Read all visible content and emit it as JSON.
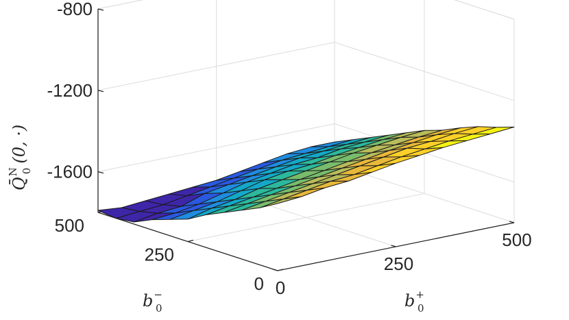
{
  "chart_data": {
    "type": "surface",
    "title": "",
    "xlabel": "b_0^+",
    "ylabel": "b_0^-",
    "zlabel": "Q̄_0^N(0, ·)",
    "xlabel_parts": {
      "base": "b",
      "sub": "0",
      "sup": "+"
    },
    "ylabel_parts": {
      "base": "b",
      "sub": "0",
      "sup": "−"
    },
    "zlabel_parts": {
      "base": "Q̄",
      "sub": "0",
      "sup": "N",
      "args": "(0, ·)"
    },
    "xticks": [
      "0",
      "250",
      "500"
    ],
    "yticks": [
      "0",
      "250",
      "500"
    ],
    "zticks": [
      "-1600",
      "-1200",
      "-800"
    ],
    "xlim": [
      0,
      500
    ],
    "ylim": [
      0,
      500
    ],
    "zlim": [
      -1800,
      -800
    ],
    "grid": true,
    "colormap": [
      "#3e26a8",
      "#2a59e0",
      "#1f8ce0",
      "#14a8c8",
      "#2cb89c",
      "#78bc6c",
      "#b8bc5a",
      "#e8b83a",
      "#fcd028",
      "#f5f214"
    ],
    "x": [
      0,
      50,
      100,
      150,
      200,
      250,
      300,
      350,
      400,
      450,
      500
    ],
    "y": [
      0,
      50,
      100,
      150,
      200,
      250,
      300,
      350,
      400,
      450,
      500
    ],
    "z": [
      [
        -1470,
        -1460,
        -1440,
        -1430,
        -1410,
        -1390,
        -1375,
        -1360,
        -1350,
        -1340,
        -1330
      ],
      [
        -1520,
        -1500,
        -1480,
        -1460,
        -1450,
        -1430,
        -1410,
        -1395,
        -1380,
        -1370,
        -1360
      ],
      [
        -1560,
        -1540,
        -1520,
        -1500,
        -1480,
        -1460,
        -1440,
        -1420,
        -1410,
        -1395,
        -1385
      ],
      [
        -1600,
        -1580,
        -1560,
        -1540,
        -1520,
        -1500,
        -1480,
        -1460,
        -1445,
        -1430,
        -1420
      ],
      [
        -1640,
        -1620,
        -1600,
        -1580,
        -1560,
        -1540,
        -1520,
        -1500,
        -1485,
        -1470,
        -1460
      ],
      [
        -1690,
        -1660,
        -1640,
        -1610,
        -1590,
        -1570,
        -1550,
        -1530,
        -1515,
        -1500,
        -1490
      ],
      [
        -1720,
        -1700,
        -1680,
        -1650,
        -1620,
        -1600,
        -1590,
        -1570,
        -1555,
        -1540,
        -1530
      ],
      [
        -1750,
        -1740,
        -1720,
        -1690,
        -1660,
        -1640,
        -1620,
        -1610,
        -1590,
        -1580,
        -1570
      ],
      [
        -1790,
        -1770,
        -1760,
        -1720,
        -1700,
        -1680,
        -1660,
        -1640,
        -1630,
        -1620,
        -1610
      ],
      [
        -1800,
        -1790,
        -1780,
        -1760,
        -1740,
        -1720,
        -1700,
        -1680,
        -1670,
        -1660,
        -1650
      ],
      [
        -1790,
        -1800,
        -1790,
        -1780,
        -1770,
        -1760,
        -1740,
        -1720,
        -1700,
        -1690,
        -1690
      ]
    ]
  }
}
